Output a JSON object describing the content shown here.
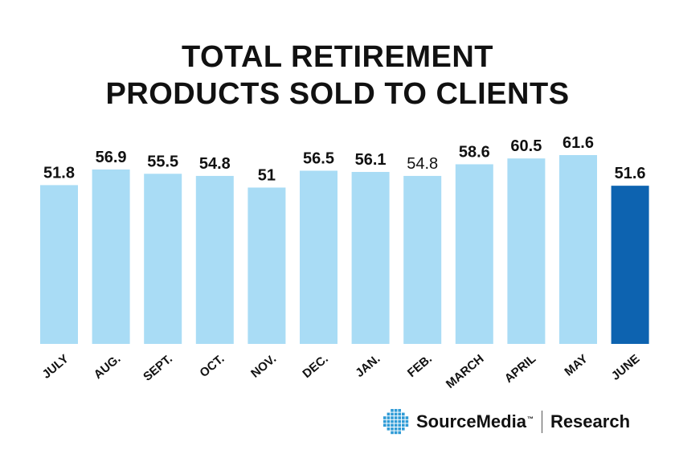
{
  "colors": {
    "bar_default": "#a9dcf5",
    "bar_highlight": "#0d63b0",
    "text": "#111111",
    "logo_blue": "#2f9bd6"
  },
  "title_lines": [
    "TOTAL RETIREMENT",
    "PRODUCTS SOLD TO CLIENTS"
  ],
  "chart_data": {
    "type": "bar",
    "title": "TOTAL RETIREMENT PRODUCTS SOLD TO CLIENTS",
    "categories": [
      "JULY",
      "AUG.",
      "SEPT.",
      "OCT.",
      "NOV.",
      "DEC.",
      "JAN.",
      "FEB.",
      "MARCH",
      "APRIL",
      "MAY",
      "JUNE"
    ],
    "values": [
      51.8,
      56.9,
      55.5,
      54.8,
      51,
      56.5,
      56.1,
      54.8,
      58.6,
      60.5,
      61.6,
      51.6
    ],
    "value_labels": [
      "51.8",
      "56.9",
      "55.5",
      "54.8",
      "51",
      "56.5",
      "56.1",
      "54.8",
      "58.6",
      "60.5",
      "61.6",
      "51.6"
    ],
    "highlight": [
      false,
      false,
      false,
      false,
      false,
      false,
      false,
      false,
      false,
      false,
      false,
      true
    ],
    "bold_labels": [
      true,
      true,
      true,
      true,
      true,
      true,
      true,
      false,
      true,
      true,
      true,
      true
    ],
    "ylim": [
      0,
      61.6
    ],
    "grid": false,
    "xlabel": "",
    "ylabel": ""
  },
  "logo": {
    "brand": "SourceMedia",
    "tm": "™",
    "division": "Research",
    "icon": "globe-grid-icon"
  }
}
